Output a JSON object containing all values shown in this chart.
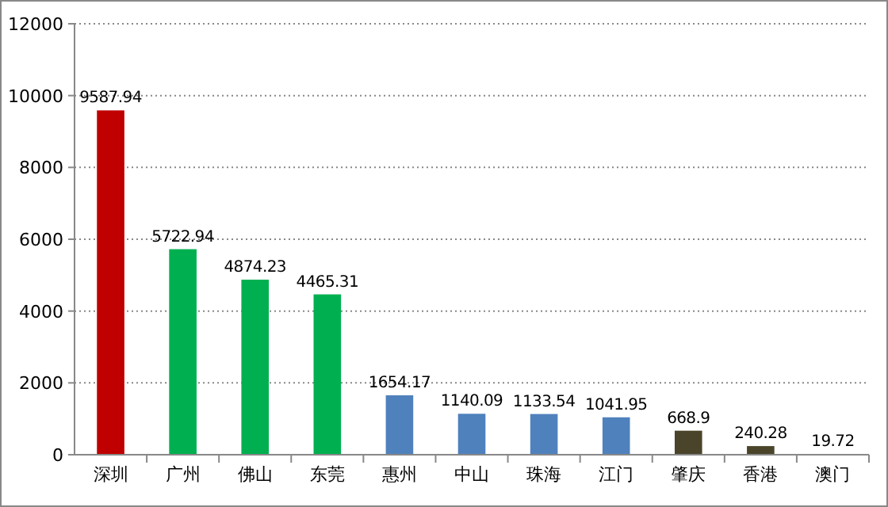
{
  "chart_data": {
    "type": "bar",
    "categories": [
      "深圳",
      "广州",
      "佛山",
      "东莞",
      "惠州",
      "中山",
      "珠海",
      "江门",
      "肇庆",
      "香港",
      "澳门"
    ],
    "values": [
      9587.94,
      5722.94,
      4874.23,
      4465.31,
      1654.17,
      1140.09,
      1133.54,
      1041.95,
      668.9,
      240.28,
      19.72
    ],
    "colors": [
      "#c00000",
      "#00b050",
      "#00b050",
      "#00b050",
      "#4f81bd",
      "#4f81bd",
      "#4f81bd",
      "#4f81bd",
      "#4a452a",
      "#4a452a",
      "#4f81bd"
    ],
    "ylim": [
      0,
      12000
    ],
    "yticks": [
      0,
      2000,
      4000,
      6000,
      8000,
      10000,
      12000
    ],
    "grid": "y",
    "data_labels": true
  }
}
